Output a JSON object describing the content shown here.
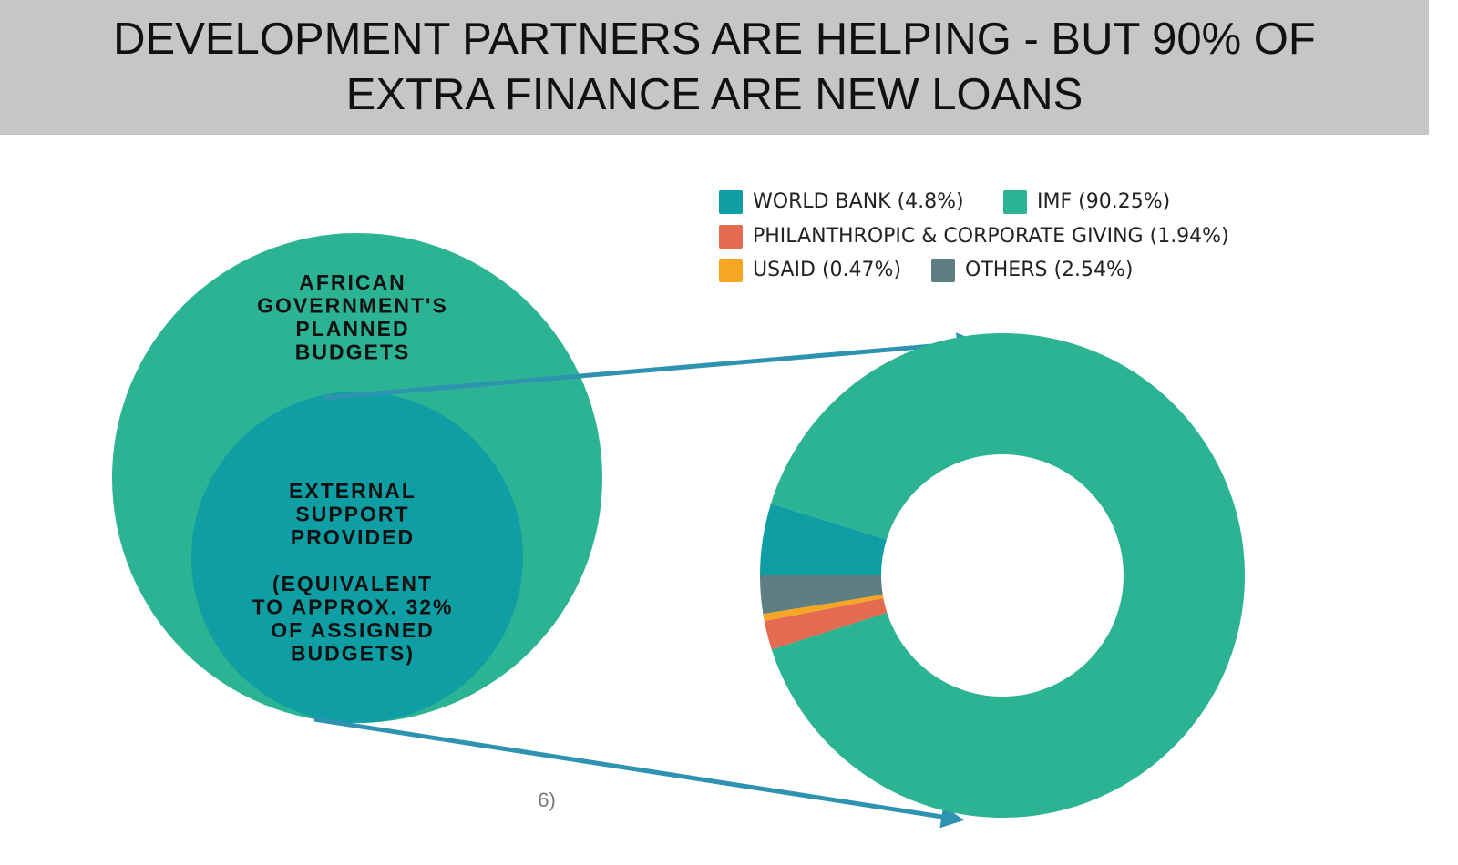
{
  "title": "DEVELOPMENT PARTNERS ARE HELPING - BUT 90% OF EXTRA FINANCE ARE NEW LOANS",
  "outer_circle": {
    "lines": [
      "AFRICAN",
      "GOVERNMENT'S",
      "PLANNED",
      "BUDGETS"
    ]
  },
  "inner_circle": {
    "lines": [
      "EXTERNAL",
      "SUPPORT",
      "PROVIDED"
    ],
    "note_lines": [
      "(EQUIVALENT",
      "TO APPROX. 32%",
      "OF ASSIGNED",
      "BUDGETS)"
    ]
  },
  "clipped_text": "6)",
  "chart_data": {
    "type": "donut",
    "categories": [
      "WORLD BANK",
      "IMF",
      "PHILANTHROPIC & CORPORATE GIVING",
      "USAID",
      "OTHERS"
    ],
    "values": [
      4.8,
      90.25,
      1.94,
      0.47,
      2.54
    ],
    "value_labels": [
      "(4.8%)",
      "(90.25%)",
      "(1.94%)",
      "(0.47%)",
      "(2.54%)"
    ],
    "colors": [
      "#0f9ea4",
      "#2bb394",
      "#e56b50",
      "#f5a623",
      "#5f7e82"
    ],
    "legend": "top-right"
  }
}
